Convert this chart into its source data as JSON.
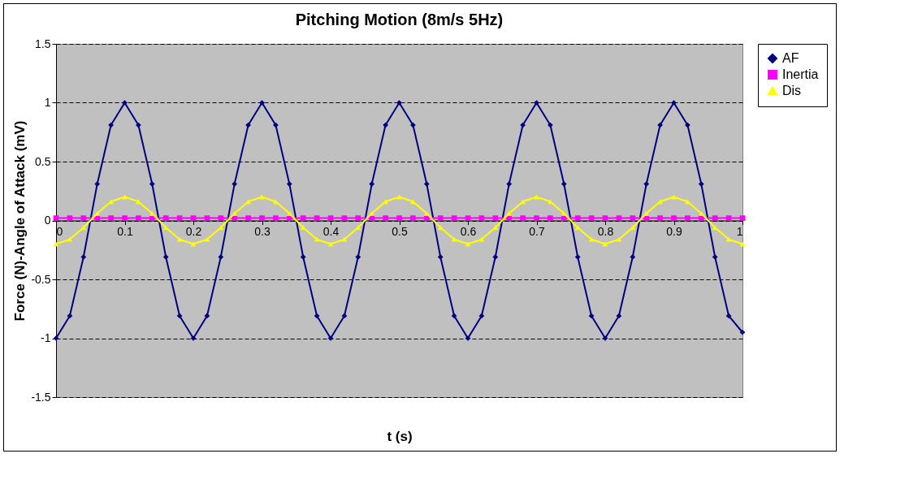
{
  "chart_data": {
    "type": "line",
    "title": "Pitching Motion (8m/s 5Hz)",
    "xlabel": "t (s)",
    "ylabel": "Force (N)-Angle of Attack (mV)",
    "x": [
      0,
      0.02,
      0.04,
      0.06,
      0.08,
      0.1,
      0.12,
      0.14,
      0.16,
      0.18,
      0.2,
      0.22,
      0.24,
      0.26,
      0.28,
      0.3,
      0.32,
      0.34,
      0.36,
      0.38,
      0.4,
      0.42,
      0.44,
      0.46,
      0.48,
      0.5,
      0.52,
      0.54,
      0.56,
      0.58,
      0.6,
      0.62,
      0.64,
      0.66,
      0.68,
      0.7,
      0.72,
      0.74,
      0.76,
      0.78,
      0.8,
      0.82,
      0.84,
      0.86,
      0.88,
      0.9,
      0.92,
      0.94,
      0.96,
      0.98,
      1
    ],
    "series": [
      {
        "name": "AF",
        "color": "#000080",
        "marker": "diamond",
        "values": [
          -1,
          -0.81,
          -0.31,
          0.31,
          0.81,
          1,
          0.81,
          0.31,
          -0.31,
          -0.81,
          -1,
          -0.81,
          -0.31,
          0.31,
          0.81,
          1,
          0.81,
          0.31,
          -0.31,
          -0.81,
          -1,
          -0.81,
          -0.31,
          0.31,
          0.81,
          1,
          0.81,
          0.31,
          -0.31,
          -0.81,
          -1,
          -0.81,
          -0.31,
          0.31,
          0.81,
          1,
          0.81,
          0.31,
          -0.31,
          -0.81,
          -1,
          -0.81,
          -0.31,
          0.31,
          0.81,
          1,
          0.81,
          0.31,
          -0.31,
          -0.81,
          -0.95
        ]
      },
      {
        "name": "Inertia",
        "color": "#ff00ff",
        "marker": "square",
        "values": [
          0.02,
          0.02,
          0.02,
          0.02,
          0.02,
          0.02,
          0.02,
          0.02,
          0.02,
          0.02,
          0.02,
          0.02,
          0.02,
          0.02,
          0.02,
          0.02,
          0.02,
          0.02,
          0.02,
          0.02,
          0.02,
          0.02,
          0.02,
          0.02,
          0.02,
          0.02,
          0.02,
          0.02,
          0.02,
          0.02,
          0.02,
          0.02,
          0.02,
          0.02,
          0.02,
          0.02,
          0.02,
          0.02,
          0.02,
          0.02,
          0.02,
          0.02,
          0.02,
          0.02,
          0.02,
          0.02,
          0.02,
          0.02,
          0.02,
          0.02,
          0.02
        ]
      },
      {
        "name": "Dis",
        "color": "#ffff00",
        "marker": "triangle",
        "values": [
          -0.2,
          -0.16,
          -0.06,
          0.06,
          0.16,
          0.2,
          0.16,
          0.06,
          -0.06,
          -0.16,
          -0.2,
          -0.16,
          -0.06,
          0.06,
          0.16,
          0.2,
          0.16,
          0.06,
          -0.06,
          -0.16,
          -0.2,
          -0.16,
          -0.06,
          0.06,
          0.16,
          0.2,
          0.16,
          0.06,
          -0.06,
          -0.16,
          -0.2,
          -0.16,
          -0.06,
          0.06,
          0.16,
          0.2,
          0.16,
          0.06,
          -0.06,
          -0.16,
          -0.2,
          -0.16,
          -0.06,
          0.06,
          0.16,
          0.2,
          0.16,
          0.06,
          -0.06,
          -0.16,
          -0.2
        ]
      }
    ],
    "xlim": [
      0,
      1
    ],
    "xticks": [
      0,
      0.1,
      0.2,
      0.3,
      0.4,
      0.5,
      0.6,
      0.7,
      0.8,
      0.9,
      1
    ],
    "ylim": [
      -1.5,
      1.5
    ],
    "yticks": [
      -1.5,
      -1,
      -0.5,
      0,
      0.5,
      1,
      1.5
    ],
    "grid": "y",
    "legend": "right"
  }
}
